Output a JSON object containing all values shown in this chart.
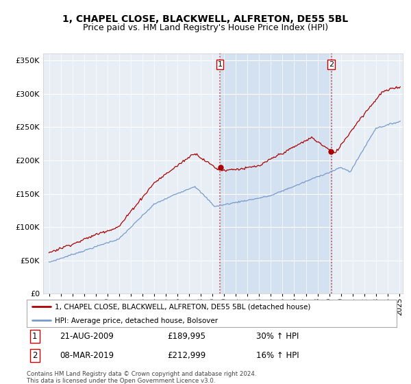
{
  "title": "1, CHAPEL CLOSE, BLACKWELL, ALFRETON, DE55 5BL",
  "subtitle": "Price paid vs. HM Land Registry's House Price Index (HPI)",
  "title_fontsize": 10,
  "subtitle_fontsize": 9,
  "ylim": [
    0,
    360000
  ],
  "yticks": [
    0,
    50000,
    100000,
    150000,
    200000,
    250000,
    300000,
    350000
  ],
  "background_color": "#f5f5f5",
  "plot_bg_color": "#e8eef5",
  "grid_color": "#ffffff",
  "property_color": "#aa0000",
  "hpi_color": "#7799cc",
  "vline_color": "#cc4444",
  "shade_color": "#ccdcee",
  "transaction1": {
    "date": "21-AUG-2009",
    "price": 189995,
    "pct": "30% ↑ HPI",
    "label": "1"
  },
  "transaction2": {
    "date": "08-MAR-2019",
    "price": 212999,
    "pct": "16% ↑ HPI",
    "label": "2"
  },
  "legend_property": "1, CHAPEL CLOSE, BLACKWELL, ALFRETON, DE55 5BL (detached house)",
  "legend_hpi": "HPI: Average price, detached house, Bolsover",
  "footer": "Contains HM Land Registry data © Crown copyright and database right 2024.\nThis data is licensed under the Open Government Licence v3.0.",
  "xstart_year": 1995,
  "xend_year": 2025,
  "transaction1_x": 2009.64,
  "transaction2_x": 2019.18
}
